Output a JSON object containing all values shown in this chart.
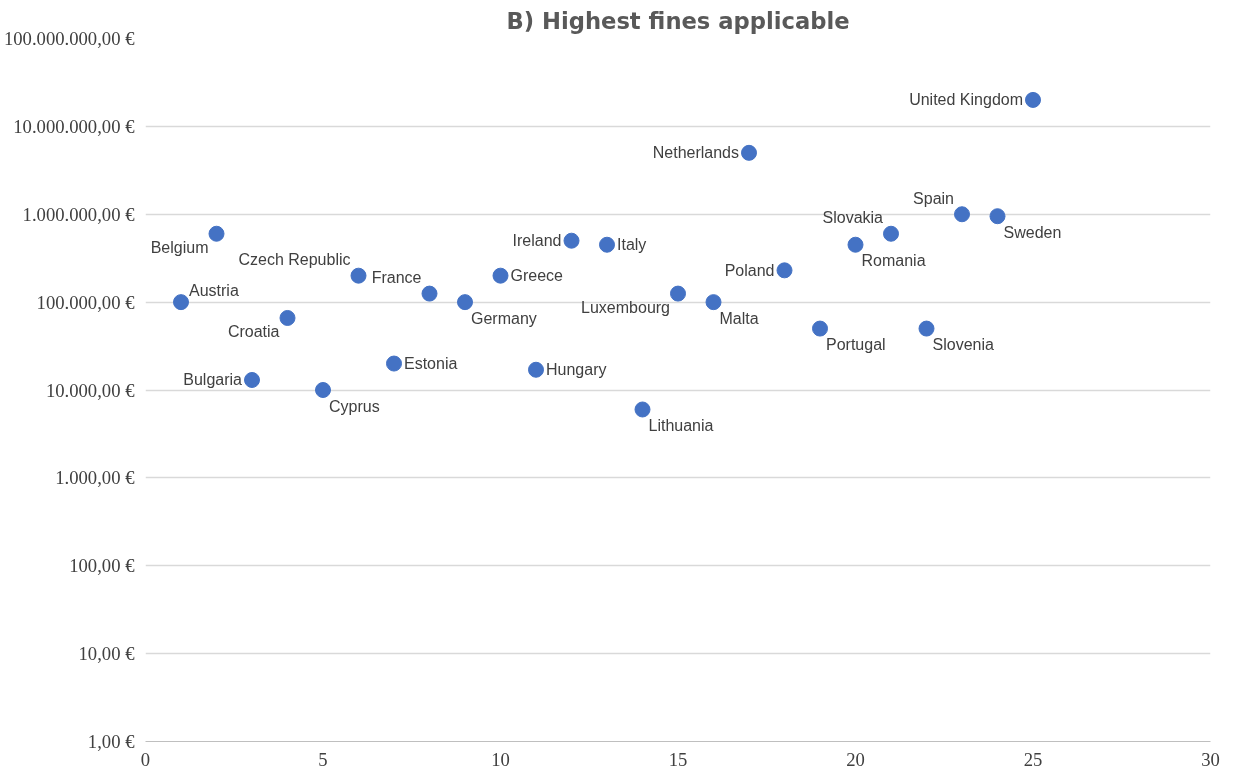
{
  "chart_data": {
    "type": "scatter",
    "title": "B) Highest fines applicable",
    "x": [
      1,
      2,
      3,
      4,
      5,
      6,
      7,
      8,
      9,
      10,
      11,
      12,
      13,
      14,
      15,
      16,
      17,
      18,
      19,
      20,
      21,
      22,
      23,
      24,
      25
    ],
    "values": [
      100000,
      600000,
      13000,
      66000,
      10000,
      200000,
      20000,
      125000,
      100000,
      200000,
      17000,
      500000,
      450000,
      6000,
      125000,
      100000,
      5000000,
      230000,
      50000,
      450000,
      600000,
      50000,
      1000000,
      950000,
      20000000
    ],
    "color": "#4472c4",
    "marker": "circle",
    "log": "y",
    "grid": "y",
    "xlim": [
      0,
      30
    ],
    "xticks": [
      0,
      5,
      10,
      15,
      20,
      25,
      30
    ],
    "ylim": [
      1,
      100000000
    ],
    "yticks": [
      {
        "value": 1,
        "label": "1,00 €"
      },
      {
        "value": 10,
        "label": "10,00 €"
      },
      {
        "value": 100,
        "label": "100,00 €"
      },
      {
        "value": 1000,
        "label": "1.000,00 €"
      },
      {
        "value": 10000,
        "label": "10.000,00 €"
      },
      {
        "value": 100000,
        "label": "100.000,00 €"
      },
      {
        "value": 1000000,
        "label": "1.000.000,00 €"
      },
      {
        "value": 10000000,
        "label": "10.000.000,00 €"
      },
      {
        "value": 100000000,
        "label": "100.000.000,00 €"
      }
    ],
    "annotations": [
      {
        "text": "Austria",
        "x": 1,
        "y": 100000
      },
      {
        "text": "Belgium",
        "x": 2,
        "y": 600000
      },
      {
        "text": "Bulgaria",
        "x": 3,
        "y": 13000
      },
      {
        "text": "Croatia",
        "x": 4,
        "y": 66000
      },
      {
        "text": "Cyprus",
        "x": 5,
        "y": 10000
      },
      {
        "text": "Czech Republic",
        "x": 6,
        "y": 200000
      },
      {
        "text": "Estonia",
        "x": 7,
        "y": 20000
      },
      {
        "text": "France",
        "x": 8,
        "y": 125000
      },
      {
        "text": "Germany",
        "x": 9,
        "y": 100000
      },
      {
        "text": "Greece",
        "x": 10,
        "y": 200000
      },
      {
        "text": "Hungary",
        "x": 11,
        "y": 17000
      },
      {
        "text": "Ireland",
        "x": 12,
        "y": 500000
      },
      {
        "text": "Italy",
        "x": 13,
        "y": 450000
      },
      {
        "text": "Lithuania",
        "x": 14,
        "y": 6000
      },
      {
        "text": "Luxembourg",
        "x": 15,
        "y": 125000
      },
      {
        "text": "Malta",
        "x": 16,
        "y": 100000
      },
      {
        "text": "Netherlands",
        "x": 17,
        "y": 5000000
      },
      {
        "text": "Poland",
        "x": 18,
        "y": 230000
      },
      {
        "text": "Portugal",
        "x": 19,
        "y": 50000
      },
      {
        "text": "Romania",
        "x": 20,
        "y": 450000
      },
      {
        "text": "Slovakia",
        "x": 21,
        "y": 600000
      },
      {
        "text": "Slovenia",
        "x": 22,
        "y": 50000
      },
      {
        "text": "Spain",
        "x": 23,
        "y": 1000000
      },
      {
        "text": "Sweden",
        "x": 24,
        "y": 950000
      },
      {
        "text": "United Kingdom",
        "x": 25,
        "y": 20000000
      }
    ]
  }
}
